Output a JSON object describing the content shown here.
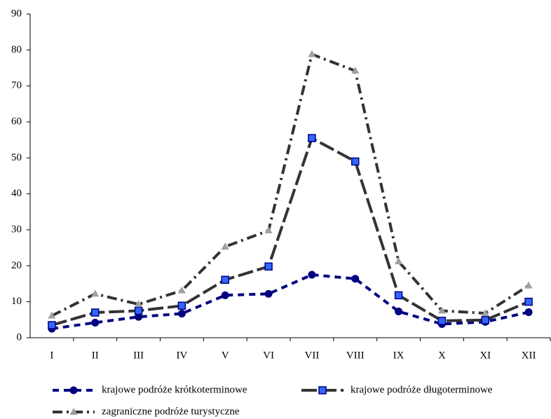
{
  "chart_data": {
    "type": "line",
    "categories": [
      "I",
      "II",
      "III",
      "IV",
      "V",
      "VI",
      "VII",
      "VIII",
      "IX",
      "X",
      "XI",
      "XII"
    ],
    "series": [
      {
        "name": "krajowe podróże krótkoterminowe",
        "color": "#000080",
        "marker_color": "#000080",
        "marker": "circle",
        "dash": "9 7",
        "values": [
          2.5,
          4.2,
          5.8,
          6.7,
          11.8,
          12.2,
          17.5,
          16.4,
          7.3,
          3.8,
          4.4,
          7.1
        ]
      },
      {
        "name": "krajowe podróże długoterminowe",
        "color": "#333333",
        "marker_color": "#3366ff",
        "marker": "square",
        "dash": "22 6",
        "values": [
          3.5,
          7.0,
          7.5,
          8.9,
          16.1,
          19.8,
          55.5,
          49.0,
          11.8,
          4.7,
          4.9,
          10.0
        ]
      },
      {
        "name": "zagraniczne podróże turystyczne",
        "color": "#333333",
        "marker_color": "#a0a0a0",
        "marker": "triangle",
        "dash": "14 6 3 6",
        "values": [
          6.1,
          12.2,
          9.3,
          13.1,
          25.3,
          29.8,
          78.8,
          74.2,
          21.2,
          7.5,
          6.8,
          14.5
        ]
      }
    ],
    "ylim": [
      0,
      90
    ],
    "yticks": [
      0,
      10,
      20,
      30,
      40,
      50,
      60,
      70,
      80,
      90
    ],
    "grid": false,
    "legend": "bottom"
  }
}
